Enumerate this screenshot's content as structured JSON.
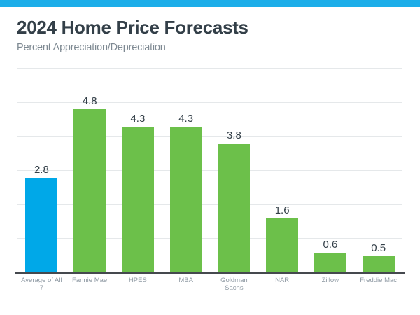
{
  "accent_bar": {
    "color": "#1caee9"
  },
  "chart_data": {
    "type": "bar",
    "title": "2024 Home Price Forecasts",
    "subtitle": "Percent Appreciation/Depreciation",
    "categories": [
      "Average of All 7",
      "Fannie Mae",
      "HPES",
      "MBA",
      "Goldman Sachs",
      "NAR",
      "Zillow",
      "Freddie Mac"
    ],
    "values": [
      2.8,
      4.8,
      4.3,
      4.3,
      3.8,
      1.6,
      0.6,
      0.5
    ],
    "value_labels": [
      "2.8",
      "4.8",
      "4.3",
      "4.3",
      "3.8",
      "1.6",
      "0.6",
      "0.5"
    ],
    "bar_colors": [
      "#00a8e8",
      "#6cc04a",
      "#6cc04a",
      "#6cc04a",
      "#6cc04a",
      "#6cc04a",
      "#6cc04a",
      "#6cc04a"
    ],
    "highlight_color": "#00a8e8",
    "series_color": "#6cc04a",
    "xlabel": "",
    "ylabel": "",
    "ylim": [
      0,
      6
    ],
    "gridline_step": 1,
    "grid": true,
    "legend": false,
    "y_axis_tick_labels_visible": false
  }
}
